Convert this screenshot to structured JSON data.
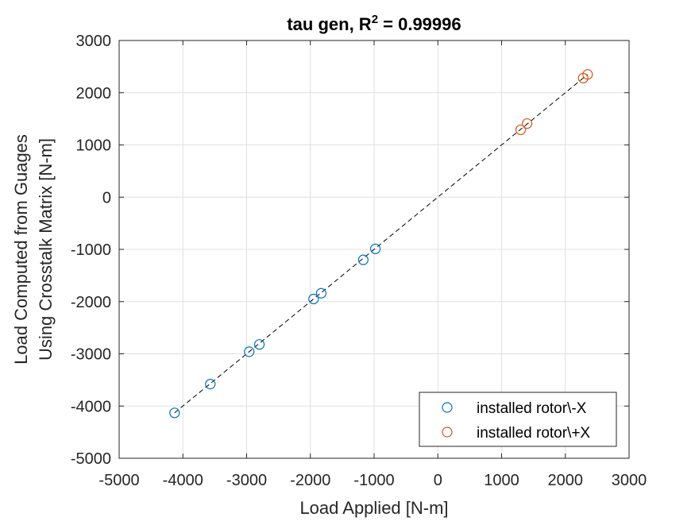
{
  "chart_data": {
    "type": "scatter",
    "title": {
      "prefix": "tau gen, R",
      "superscript": "2",
      "suffix": " = 0.99996"
    },
    "xlabel": "Load Applied [N-m]",
    "ylabel_lines": [
      "Load Computed from Guages",
      "Using Crosstalk Matrix [N-m]"
    ],
    "xlim": [
      -5000,
      3000
    ],
    "ylim": [
      -5000,
      3000
    ],
    "xticks": [
      -5000,
      -4000,
      -3000,
      -2000,
      -1000,
      0,
      1000,
      2000,
      3000
    ],
    "yticks": [
      -5000,
      -4000,
      -3000,
      -2000,
      -1000,
      0,
      1000,
      2000,
      3000
    ],
    "xtick_labels": [
      "-5000",
      "-4000",
      "-3000",
      "-2000",
      "-1000",
      "0",
      "1000",
      "2000",
      "3000"
    ],
    "ytick_labels": [
      "-5000",
      "-4000",
      "-3000",
      "-2000",
      "-1000",
      "0",
      "1000",
      "2000",
      "3000"
    ],
    "grid": true,
    "legend_position": "bottom-right",
    "fit_line": {
      "style": "dashed",
      "color": "#000000",
      "x": [
        -4130,
        2350
      ],
      "y": [
        -4130,
        2350
      ]
    },
    "series": [
      {
        "name": "installed rotor\\-X",
        "color": "#0072BD",
        "marker": "circle-open",
        "x": [
          -4130,
          -3570,
          -2960,
          -2800,
          -1950,
          -1830,
          -1170,
          -980
        ],
        "y": [
          -4130,
          -3580,
          -2960,
          -2820,
          -1950,
          -1840,
          -1200,
          -990
        ]
      },
      {
        "name": "installed rotor\\+X",
        "color": "#D95319",
        "marker": "circle-open",
        "x": [
          1300,
          1400,
          2280,
          2350
        ],
        "y": [
          1290,
          1410,
          2280,
          2350
        ]
      }
    ]
  }
}
